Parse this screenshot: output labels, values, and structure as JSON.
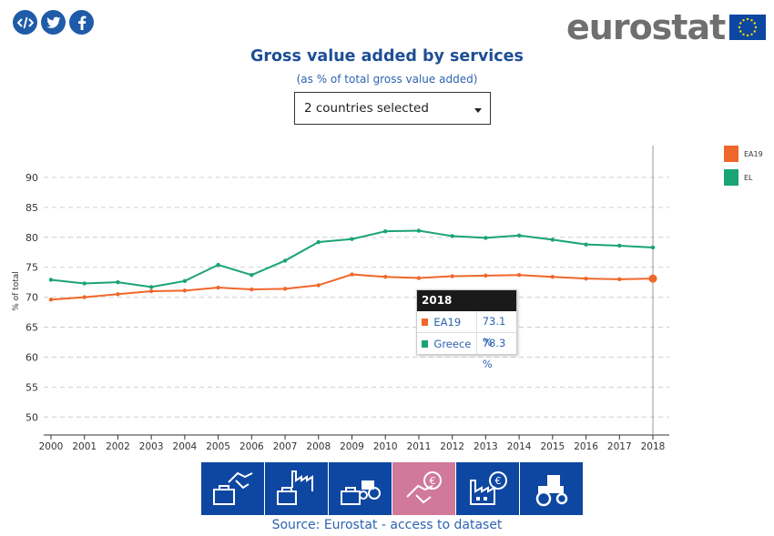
{
  "share": [
    {
      "name": "embed-icon",
      "glyph": "</>"
    },
    {
      "name": "twitter-icon",
      "glyph": "t"
    },
    {
      "name": "facebook-icon",
      "glyph": "f"
    }
  ],
  "logo": {
    "text": "eurostat"
  },
  "header": {
    "title": "Gross value added by services",
    "subtitle": "(as % of total gross value added)"
  },
  "selector": {
    "value": "2 countries selected"
  },
  "chart_data": {
    "type": "line",
    "x": [
      2000,
      2001,
      2002,
      2003,
      2004,
      2005,
      2006,
      2007,
      2008,
      2009,
      2010,
      2011,
      2012,
      2013,
      2014,
      2015,
      2016,
      2017,
      2018
    ],
    "series": [
      {
        "name": "EA19",
        "color": "#f0672b",
        "values": [
          69.6,
          70.0,
          70.5,
          71.0,
          71.1,
          71.6,
          71.3,
          71.4,
          72.0,
          73.8,
          73.4,
          73.2,
          73.5,
          73.6,
          73.7,
          73.4,
          73.1,
          73.0,
          73.1
        ]
      },
      {
        "name": "EL",
        "color": "#1aa377",
        "values": [
          72.9,
          72.3,
          72.5,
          71.7,
          72.7,
          75.4,
          73.7,
          76.1,
          79.2,
          79.7,
          81.0,
          81.1,
          80.2,
          79.9,
          80.3,
          79.6,
          78.8,
          78.6,
          78.3
        ]
      }
    ],
    "ylabel": "% of total",
    "yticks": [
      50,
      55,
      60,
      65,
      70,
      75,
      80,
      85,
      90
    ],
    "ylim": [
      47,
      95
    ],
    "xlim": [
      2000,
      2018
    ],
    "grid": "horizontal dashed",
    "legend_position": "top-right",
    "highlight_x": 2018
  },
  "tooltip": {
    "year": "2018",
    "rows": [
      {
        "label": "EA19",
        "value": "73.1 %",
        "color": "#f0672b"
      },
      {
        "label": "Greece",
        "value": "78.3 %",
        "color": "#1aa377"
      }
    ]
  },
  "themes": [
    {
      "name": "theme-services-button",
      "icon": "handshake-briefcase-icon",
      "active": false
    },
    {
      "name": "theme-industry-button",
      "icon": "factory-briefcase-icon",
      "active": false
    },
    {
      "name": "theme-agriculture-button",
      "icon": "tractor-briefcase-icon",
      "active": false
    },
    {
      "name": "theme-services-euro-button",
      "icon": "handshake-euro-icon",
      "active": true
    },
    {
      "name": "theme-industry-euro-button",
      "icon": "factory-euro-icon",
      "active": false
    },
    {
      "name": "theme-agriculture-euro-button",
      "icon": "tractor-euro-icon",
      "active": false
    }
  ],
  "source": {
    "prefix": "Source: Eurostat - ",
    "link": "access to dataset"
  }
}
